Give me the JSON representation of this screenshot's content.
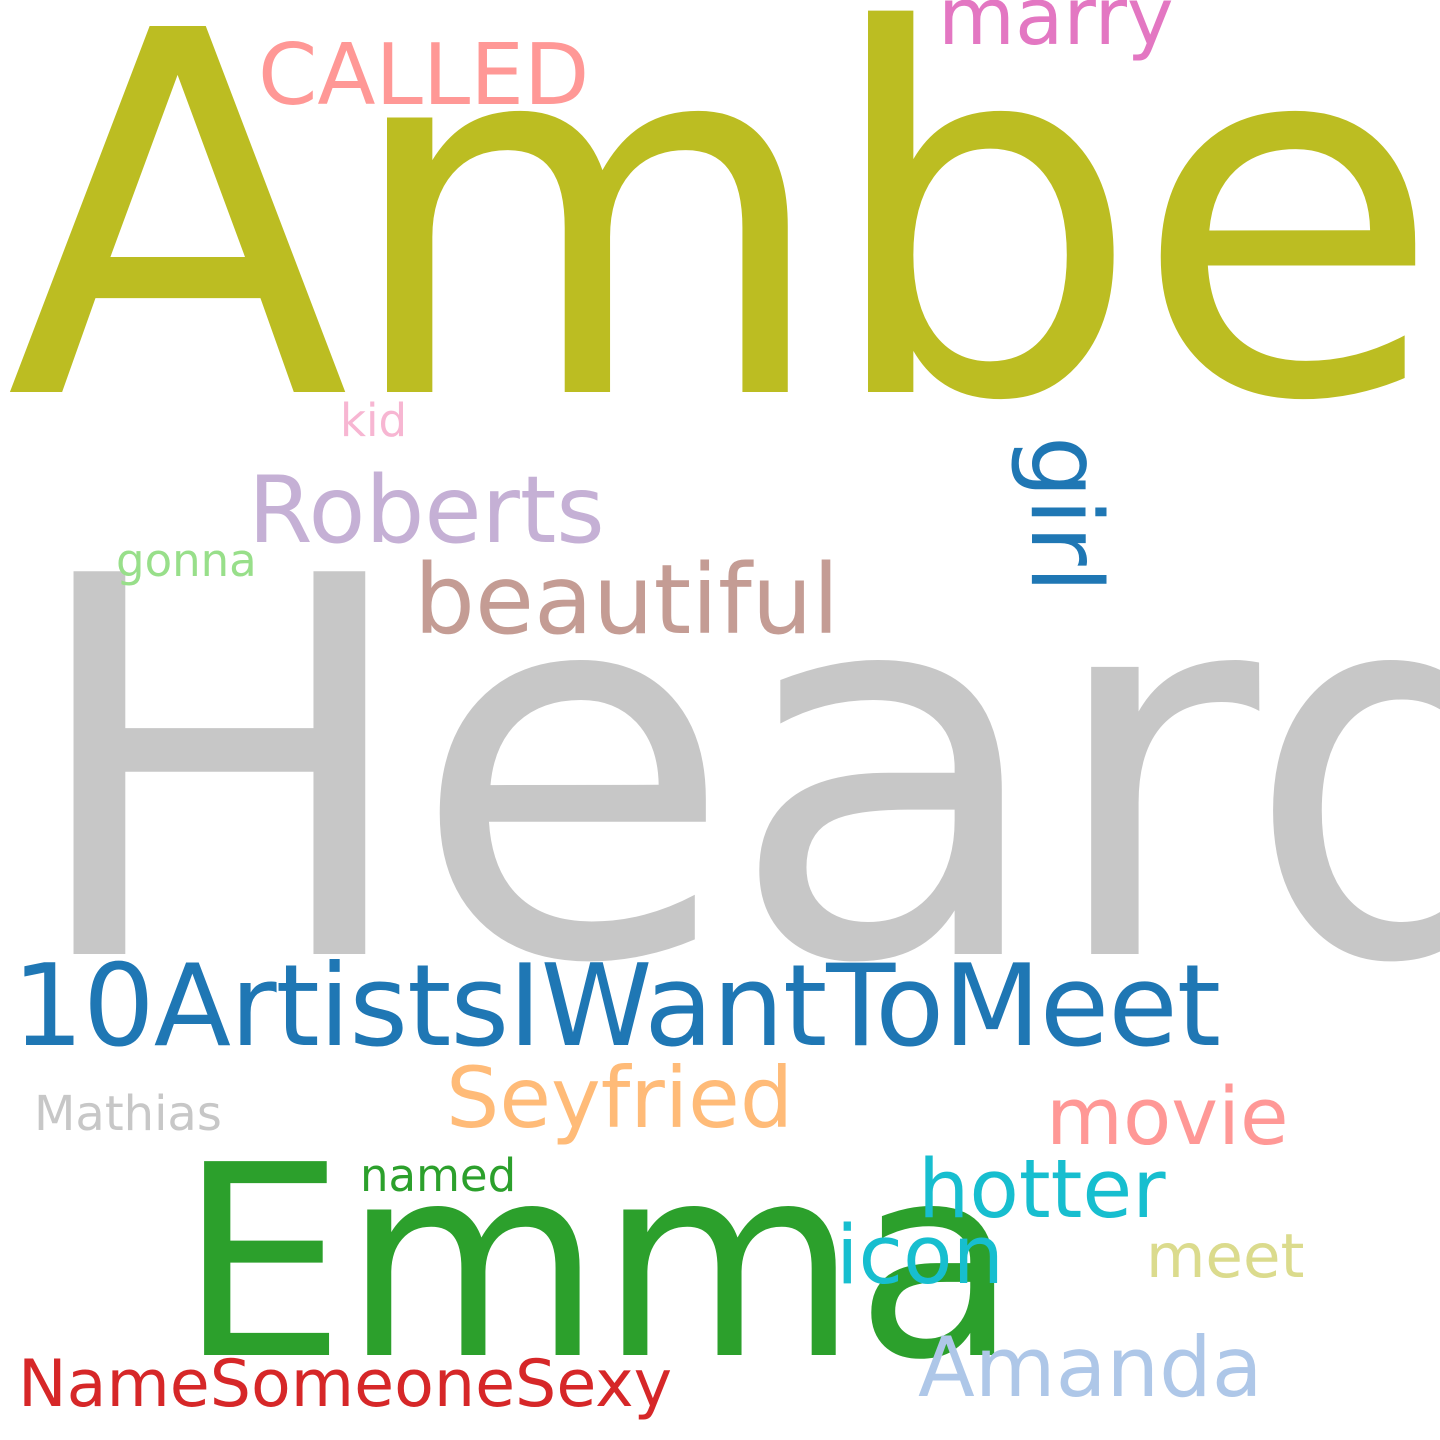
{
  "words": {
    "amber": {
      "text": "Amber",
      "color": "#bcbd22"
    },
    "heard": {
      "text": "Heard",
      "color": "#c7c7c7"
    },
    "tag_artists": {
      "text": "10ArtistsIWantToMeet",
      "color": "#1f77b4"
    },
    "emma": {
      "text": "Emma",
      "color": "#2ca02c"
    },
    "roberts": {
      "text": "Roberts",
      "color": "#c5b0d5"
    },
    "beautiful": {
      "text": "beautiful",
      "color": "#c49c94"
    },
    "girl": {
      "text": "girl",
      "color": "#1f77b4"
    },
    "called": {
      "text": "CALLED",
      "color": "#ff9896"
    },
    "marry": {
      "text": "marry",
      "color": "#e377c2"
    },
    "kid": {
      "text": "kid",
      "color": "#f7b6d2"
    },
    "gonna": {
      "text": "gonna",
      "color": "#98df8a"
    },
    "seyfried": {
      "text": "Seyfried",
      "color": "#ffbb78"
    },
    "movie": {
      "text": "movie",
      "color": "#ff9896"
    },
    "mathias": {
      "text": "Mathias",
      "color": "#c7c7c7"
    },
    "named": {
      "text": "named",
      "color": "#2ca02c"
    },
    "hotter": {
      "text": "hotter",
      "color": "#17becf"
    },
    "icon": {
      "text": "icon",
      "color": "#17becf"
    },
    "meet": {
      "text": "meet",
      "color": "#dbdb8d"
    },
    "amanda": {
      "text": "Amanda",
      "color": "#aec7e8"
    },
    "tag_sexy": {
      "text": "NameSomeoneSexy",
      "color": "#d62728"
    }
  }
}
